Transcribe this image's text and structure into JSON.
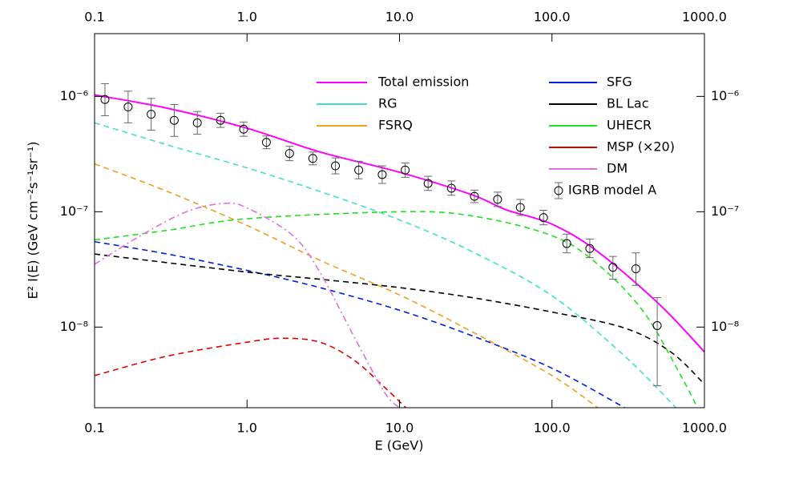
{
  "chart_data": {
    "type": "line",
    "xlabel": "E (GeV)",
    "ylabel": "E² I(E) (GeV cm⁻²s⁻¹sr⁻¹)",
    "xscale": "log",
    "yscale": "log",
    "xlim": [
      0.1,
      1000
    ],
    "ylim": [
      2e-09,
      3.5e-06
    ],
    "xticks": [
      0.1,
      {
        "value": 1,
        "label": "1.0"
      },
      {
        "value": 10,
        "label": "10.0"
      },
      {
        "value": 100,
        "label": "100.0"
      },
      {
        "value": 1000,
        "label": "1000.0"
      }
    ],
    "yticks": [
      {
        "value": 1e-08,
        "label": "10⁻⁸"
      },
      {
        "value": 1e-07,
        "label": "10⁻⁷"
      },
      {
        "value": 1e-06,
        "label": "10⁻⁶"
      }
    ],
    "series": [
      {
        "name": "Total emission",
        "color": "#ff00ff",
        "style": "solid",
        "x": [
          0.1,
          0.3,
          1,
          3,
          10,
          30,
          50,
          100,
          200,
          500,
          1000
        ],
        "values": [
          1.03e-06,
          7.9e-07,
          5.3e-07,
          3.3e-07,
          2.2e-07,
          1.4e-07,
          1.04e-07,
          7.8e-08,
          4.5e-08,
          1.6e-08,
          6.1e-09
        ]
      },
      {
        "name": "RG",
        "color": "#40e0d0",
        "style": "dashed",
        "x": [
          0.1,
          0.3,
          1,
          3,
          10,
          30,
          100,
          300,
          650
        ],
        "values": [
          5.9e-07,
          3.8e-07,
          2.4e-07,
          1.5e-07,
          8.5e-08,
          4.5e-08,
          1.87e-08,
          5.6e-09,
          2e-09
        ]
      },
      {
        "name": "FSRQ",
        "color": "#f0a020",
        "style": "dashed",
        "x": [
          0.1,
          0.3,
          1,
          3,
          10,
          30,
          100,
          200
        ],
        "values": [
          2.6e-07,
          1.5e-07,
          7.6e-08,
          3.8e-08,
          1.9e-08,
          9.1e-09,
          3.8e-09,
          2e-09
        ]
      },
      {
        "name": "SFG",
        "color": "#0020e0",
        "style": "dashed",
        "x": [
          0.1,
          0.3,
          1,
          3,
          10,
          30,
          100,
          300
        ],
        "values": [
          5.5e-08,
          4.3e-08,
          3.1e-08,
          2.2e-08,
          1.4e-08,
          8.4e-09,
          4.4e-09,
          2e-09
        ]
      },
      {
        "name": "BL Lac",
        "color": "#000000",
        "style": "dashed",
        "x": [
          0.1,
          1,
          3,
          10,
          30,
          100,
          300,
          600,
          1000
        ],
        "values": [
          4.3e-08,
          3e-08,
          2.6e-08,
          2.2e-08,
          1.8e-08,
          1.35e-08,
          9.8e-09,
          6.1e-09,
          3.2e-09
        ]
      },
      {
        "name": "UHECR",
        "color": "#20e020",
        "style": "dashed",
        "x": [
          0.1,
          0.3,
          1,
          10,
          30,
          100,
          200,
          400,
          700,
          900
        ],
        "values": [
          5.7e-08,
          6.9e-08,
          8.7e-08,
          1e-07,
          9.2e-08,
          6.2e-08,
          3.5e-08,
          1.35e-08,
          3.8e-09,
          2e-09
        ]
      },
      {
        "name": "MSP (×20)",
        "color": "#e00000",
        "style": "dashed",
        "x": [
          0.1,
          0.3,
          1,
          1.7,
          3,
          5,
          8,
          11
        ],
        "values": [
          3.8e-09,
          5.6e-09,
          7.4e-09,
          8e-09,
          7.4e-09,
          5.2e-09,
          3e-09,
          2e-09
        ]
      },
      {
        "name": "DM",
        "color": "#e070e0",
        "style": "dashdot",
        "x": [
          0.1,
          0.2,
          0.4,
          0.7,
          1,
          2,
          3,
          5,
          8,
          10
        ],
        "values": [
          3.5e-08,
          6.2e-08,
          1e-07,
          1.18e-07,
          1.08e-07,
          6.2e-08,
          3e-08,
          8.4e-09,
          2.7e-09,
          2e-09
        ]
      },
      {
        "name": "IGRB model A",
        "color": "#666666",
        "style": "points",
        "x": [
          0.117,
          0.166,
          0.235,
          0.333,
          0.472,
          0.67,
          0.95,
          1.34,
          1.9,
          2.7,
          3.8,
          5.4,
          7.7,
          10.9,
          15.4,
          21.9,
          31,
          44,
          62,
          88,
          125,
          177,
          251,
          355,
          490
        ],
        "values": [
          9.4e-07,
          8.1e-07,
          7e-07,
          6.2e-07,
          5.9e-07,
          6.2e-07,
          5.2e-07,
          4e-07,
          3.2e-07,
          2.9e-07,
          2.5e-07,
          2.3e-07,
          2.1e-07,
          2.3e-07,
          1.76e-07,
          1.6e-07,
          1.36e-07,
          1.28e-07,
          1.09e-07,
          8.9e-08,
          5.3e-08,
          4.8e-08,
          3.3e-08,
          3.2e-08,
          1.03e-08
        ],
        "err_high": [
          3.5e-07,
          3e-07,
          2.6e-07,
          2.3e-07,
          1.5e-07,
          9.5e-08,
          8e-08,
          5.4e-08,
          4.9e-08,
          3.9e-08,
          4.3e-08,
          4.4e-08,
          4e-08,
          3.5e-08,
          2.7e-08,
          2.5e-08,
          1.8e-08,
          2e-08,
          1.9e-08,
          1.4e-08,
          1.1e-08,
          1e-08,
          8e-09,
          1.2e-08,
          7.7e-09
        ],
        "err_low": [
          2.6e-07,
          2.2e-07,
          1.9e-07,
          1.7e-07,
          1.2e-07,
          8.2e-08,
          6.9e-08,
          4.8e-08,
          4.3e-08,
          3.5e-08,
          3.7e-08,
          3.7e-08,
          3.4e-08,
          3.1e-08,
          2.3e-08,
          2.1e-08,
          1.6e-08,
          1.7e-08,
          1.6e-08,
          1.2e-08,
          9e-09,
          8e-09,
          7e-09,
          9e-09,
          7.2e-09
        ]
      }
    ]
  }
}
